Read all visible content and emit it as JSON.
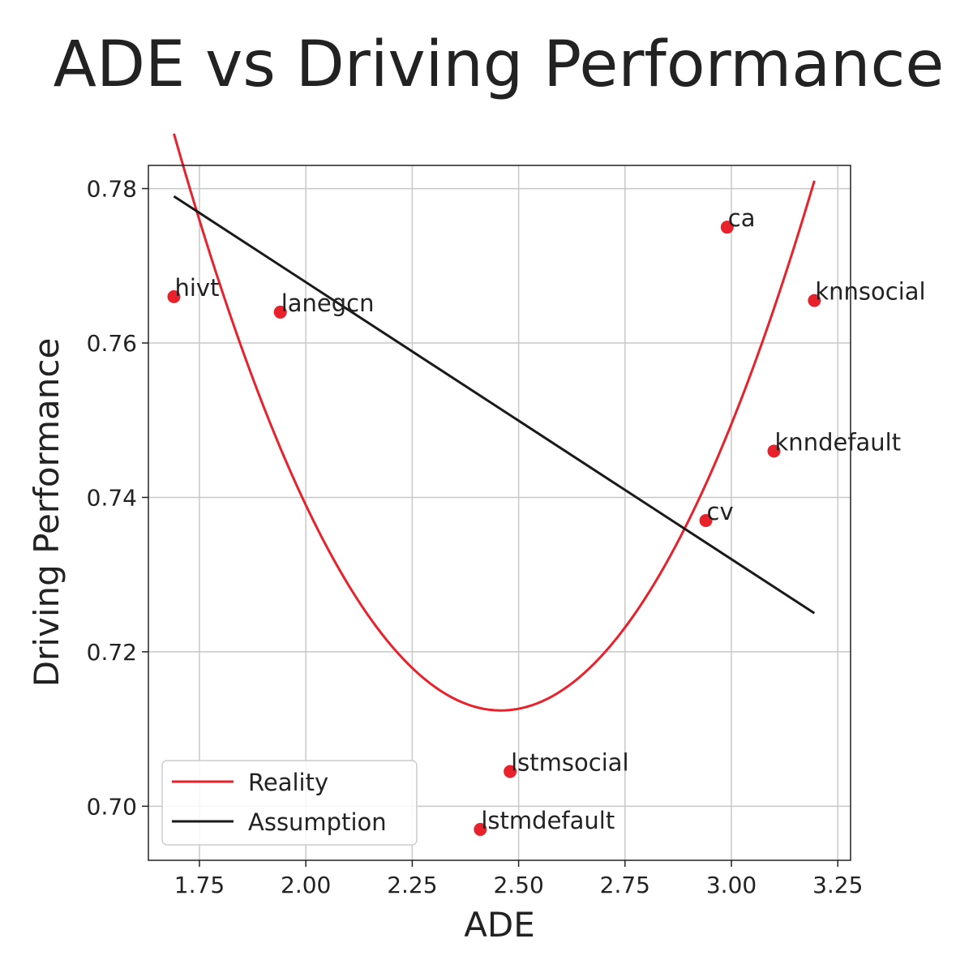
{
  "chart_data": {
    "type": "scatter",
    "title": "ADE vs Driving Performance",
    "xlabel": "ADE",
    "ylabel": "Driving Performance",
    "xlim": [
      1.63,
      3.28
    ],
    "ylim": [
      0.693,
      0.783
    ],
    "xticks": [
      1.75,
      2.0,
      2.25,
      2.5,
      2.75,
      3.0,
      3.25
    ],
    "xtick_labels": [
      "1.75",
      "2.00",
      "2.25",
      "2.50",
      "2.75",
      "3.00",
      "3.25"
    ],
    "yticks": [
      0.7,
      0.72,
      0.74,
      0.76,
      0.78
    ],
    "ytick_labels": [
      "0.70",
      "0.72",
      "0.74",
      "0.76",
      "0.78"
    ],
    "grid": true,
    "legend_position": "lower-left",
    "points": [
      {
        "label": "hivt",
        "x": 1.69,
        "y": 0.766
      },
      {
        "label": "lanegcn",
        "x": 1.94,
        "y": 0.764
      },
      {
        "label": "ca",
        "x": 2.99,
        "y": 0.775
      },
      {
        "label": "knnsocial",
        "x": 3.195,
        "y": 0.7655
      },
      {
        "label": "knndefault",
        "x": 3.1,
        "y": 0.746
      },
      {
        "label": "cv",
        "x": 2.94,
        "y": 0.737
      },
      {
        "label": "lstmsocial",
        "x": 2.48,
        "y": 0.7045
      },
      {
        "label": "lstmdefault",
        "x": 2.41,
        "y": 0.697
      }
    ],
    "point_color": "#e8212b",
    "series": [
      {
        "name": "Reality",
        "kind": "quadratic-fit",
        "color": "#e8212b",
        "x_range": [
          1.69,
          3.195
        ],
        "coefficients": [
          0.1265,
          -0.622,
          1.477
        ]
      },
      {
        "name": "Assumption",
        "kind": "linear-fit",
        "color": "#1a1a1a",
        "x": [
          1.69,
          3.195
        ],
        "y": [
          0.779,
          0.725
        ]
      }
    ]
  }
}
